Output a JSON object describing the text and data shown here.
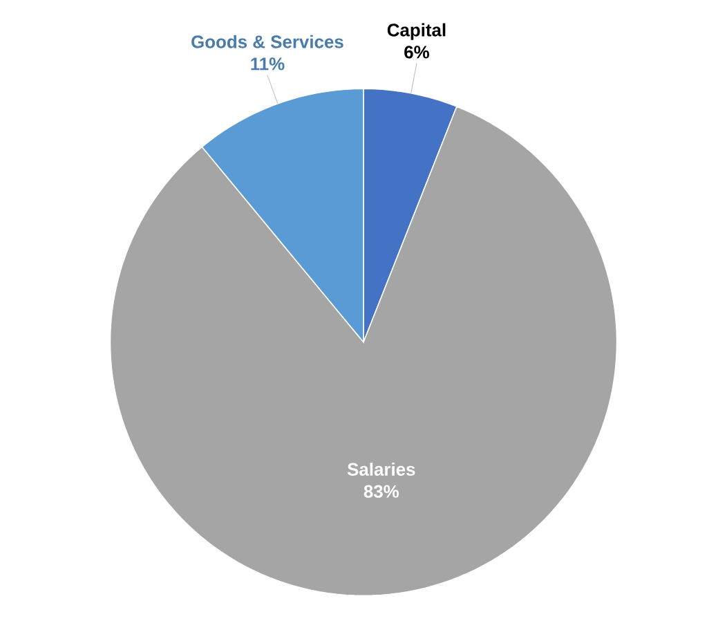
{
  "chart_data": {
    "type": "pie",
    "categories": [
      "Capital",
      "Salaries",
      "Goods & Services"
    ],
    "values": [
      6,
      83,
      11
    ],
    "colors": [
      "#4472c4",
      "#a5a5a5",
      "#5b9bd5"
    ],
    "value_labels": [
      "6%",
      "83%",
      "11%"
    ]
  }
}
